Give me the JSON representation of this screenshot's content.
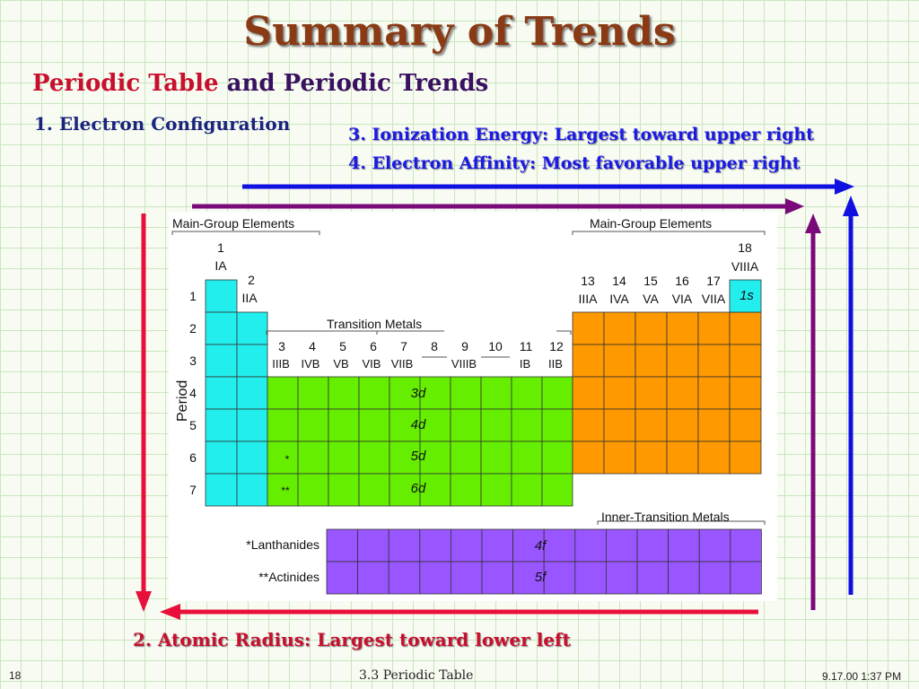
{
  "slide": {
    "title": "Summary of Trends",
    "subtitle_part1": "Periodic Table",
    "subtitle_part2": " and Periodic Trends",
    "item1": "1.  Electron Configuration",
    "item3": "3. Ionization Energy: Largest toward upper right",
    "item4": "4. Electron Affinity:   Most favorable upper right",
    "item2": "2.  Atomic Radius:  Largest toward lower left",
    "footer_left": "18",
    "footer_center": "3.3  Periodic Table",
    "footer_right": "9.17.00 1:37 PM"
  },
  "table": {
    "main_group_left_label": "Main-Group Elements",
    "main_group_right_label": "Main-Group Elements",
    "transition_label": "Transition Metals",
    "inner_transition_label": "Inner-Transition Metals",
    "period_label": "Period",
    "periods": [
      "1",
      "2",
      "3",
      "4",
      "5",
      "6",
      "7"
    ],
    "group_1": {
      "num": "1",
      "roman": "IA"
    },
    "group_2": {
      "num": "2",
      "roman": "IIA"
    },
    "group_18": {
      "num": "18",
      "roman": "VIIIA"
    },
    "groups_13_17": [
      {
        "num": "13",
        "roman": "IIIA"
      },
      {
        "num": "14",
        "roman": "IVA"
      },
      {
        "num": "15",
        "roman": "VA"
      },
      {
        "num": "16",
        "roman": "VIA"
      },
      {
        "num": "17",
        "roman": "VIIA"
      }
    ],
    "groups_3_12_nums": [
      "3",
      "4",
      "5",
      "6",
      "7",
      "8",
      "9",
      "10",
      "11",
      "12"
    ],
    "groups_3_12_roman": [
      "IIIB",
      "IVB",
      "VB",
      "VIB",
      "VIIB",
      "VIIIB",
      "IB",
      "IIB"
    ],
    "block_labels": {
      "s1": "1s",
      "d3": "3d",
      "d4": "4d",
      "d5": "5d",
      "d6": "6d",
      "f4": "4f",
      "f5": "5f"
    },
    "star_single": "*",
    "star_double": "**",
    "lanthanides": "*Lanthanides",
    "actinides": "**Actinides",
    "colors": {
      "s_block": "#22eeee",
      "d_block": "#66ee00",
      "p_block": "#ff9900",
      "f_block": "#9955ff"
    }
  },
  "arrows": {
    "ionization_color": "#1010e0",
    "affinity_color": "#7a0a7a",
    "radius_color": "#e8103a"
  }
}
